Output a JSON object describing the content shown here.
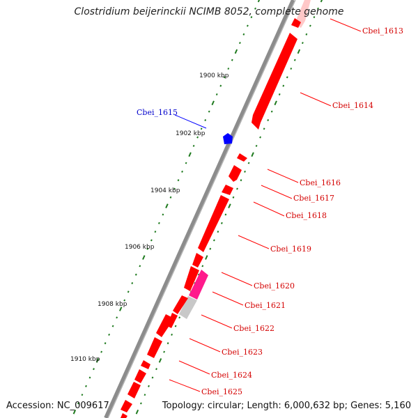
{
  "title": "Clostridium beijerinckii NCIMB 8052, complete genome",
  "accession": "Accession: NC_009617",
  "summary": "Topology: circular; Length: 6,000,632 bp; Genes: 5,160",
  "colors": {
    "backbone": "#8c8c8c",
    "forward_gene": "#ff0000",
    "highlight_gene": "#ff1a8c",
    "gray_gene": "#c8c8c8",
    "pale_gene": "#ffc8c8",
    "selected_gene": "#0000ff",
    "tick_mark": "#1e7a1e",
    "label_line": "#ff0000",
    "selected_label": "#0000cc"
  },
  "kbp_ticks": [
    "1900 kbp",
    "1902 kbp",
    "1904 kbp",
    "1906 kbp",
    "1908 kbp",
    "1910 kbp"
  ],
  "genes": [
    {
      "id": "Cbei_1613",
      "color": "red"
    },
    {
      "id": "Cbei_1614",
      "color": "red"
    },
    {
      "id": "Cbei_1615",
      "color": "blue"
    },
    {
      "id": "Cbei_1616",
      "color": "red"
    },
    {
      "id": "Cbei_1617",
      "color": "red"
    },
    {
      "id": "Cbei_1618",
      "color": "red"
    },
    {
      "id": "Cbei_1619",
      "color": "red"
    },
    {
      "id": "Cbei_1620",
      "color": "red"
    },
    {
      "id": "Cbei_1621",
      "color": "red"
    },
    {
      "id": "Cbei_1622",
      "color": "red"
    },
    {
      "id": "Cbei_1623",
      "color": "red"
    },
    {
      "id": "Cbei_1624",
      "color": "red"
    },
    {
      "id": "Cbei_1625",
      "color": "red"
    }
  ]
}
